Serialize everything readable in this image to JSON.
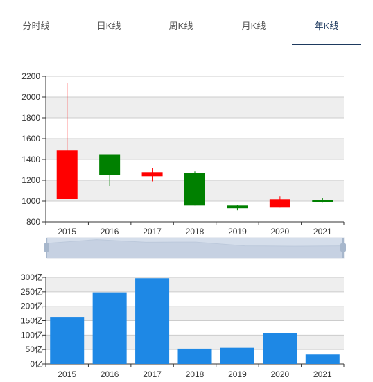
{
  "tabs": [
    {
      "label": "分时线",
      "active": false
    },
    {
      "label": "日K线",
      "active": false
    },
    {
      "label": "周K线",
      "active": false
    },
    {
      "label": "月K线",
      "active": false
    },
    {
      "label": "年K线",
      "active": true
    }
  ],
  "colors": {
    "rise": "#ff0000",
    "fall": "#008000",
    "volume": "#1e88e5",
    "grid_band": "#eeeeee",
    "active_tab": "#1e3a5f"
  },
  "chart_data": [
    {
      "type": "candlestick",
      "categories": [
        "2015",
        "2016",
        "2017",
        "2018",
        "2019",
        "2020",
        "2021"
      ],
      "series": [
        {
          "open": 1020,
          "close": 1485,
          "low": 1020,
          "high": 2135
        },
        {
          "open": 1450,
          "close": 1248,
          "low": 1145,
          "high": 1450
        },
        {
          "open": 1238,
          "close": 1278,
          "low": 1190,
          "high": 1318
        },
        {
          "open": 1270,
          "close": 958,
          "low": 958,
          "high": 1285
        },
        {
          "open": 958,
          "close": 932,
          "low": 912,
          "high": 962
        },
        {
          "open": 938,
          "close": 1018,
          "low": 938,
          "high": 1045
        },
        {
          "open": 1012,
          "close": 992,
          "low": 985,
          "high": 1030
        }
      ],
      "ylim": [
        800,
        2200
      ],
      "yticks": [
        "800",
        "1000",
        "1200",
        "1400",
        "1600",
        "1800",
        "2000",
        "2200"
      ],
      "grid": true
    },
    {
      "type": "bar",
      "categories": [
        "2015",
        "2016",
        "2017",
        "2018",
        "2019",
        "2020",
        "2021"
      ],
      "values": [
        163,
        248,
        297,
        53,
        56,
        106,
        33
      ],
      "ylim": [
        0,
        300
      ],
      "yticks": [
        "0亿",
        "50亿",
        "100亿",
        "150亿",
        "200亿",
        "250亿",
        "300亿"
      ],
      "grid": true
    }
  ],
  "slider": {
    "trend": [
      80,
      100,
      86,
      87,
      66,
      64,
      66
    ],
    "range": [
      0,
      100
    ]
  }
}
